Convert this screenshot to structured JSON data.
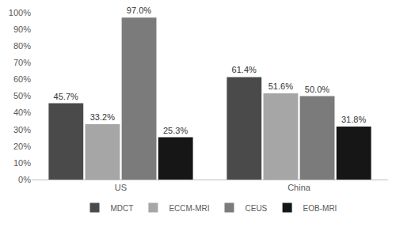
{
  "chart_data": {
    "type": "bar",
    "categories": [
      "US",
      "China"
    ],
    "series": [
      {
        "name": "MDCT",
        "color": "#4a4a4a",
        "values": [
          45.7,
          61.4
        ],
        "value_labels": [
          "45.7%",
          "61.4%"
        ]
      },
      {
        "name": "ECCM-MRI",
        "color": "#a6a6a6",
        "values": [
          33.2,
          51.6
        ],
        "value_labels": [
          "33.2%",
          "51.6%"
        ]
      },
      {
        "name": "CEUS",
        "color": "#7b7b7b",
        "values": [
          97.0,
          50.0
        ],
        "value_labels": [
          "97.0%",
          "50.0%"
        ]
      },
      {
        "name": "EOB-MRI",
        "color": "#161616",
        "values": [
          25.3,
          31.8
        ],
        "value_labels": [
          "25.3%",
          "31.8%"
        ]
      }
    ],
    "ylim": [
      0,
      100
    ],
    "yticks": [
      {
        "value": 0,
        "label": "0%"
      },
      {
        "value": 10,
        "label": "10%"
      },
      {
        "value": 20,
        "label": "20%"
      },
      {
        "value": 30,
        "label": "30%"
      },
      {
        "value": 40,
        "label": "40%"
      },
      {
        "value": 50,
        "label": "50%"
      },
      {
        "value": 60,
        "label": "60%"
      },
      {
        "value": 70,
        "label": "70%"
      },
      {
        "value": 80,
        "label": "80%"
      },
      {
        "value": 90,
        "label": "90%"
      },
      {
        "value": 100,
        "label": "100%"
      }
    ],
    "grid": false,
    "legend": "bottom",
    "data_labels": true
  }
}
